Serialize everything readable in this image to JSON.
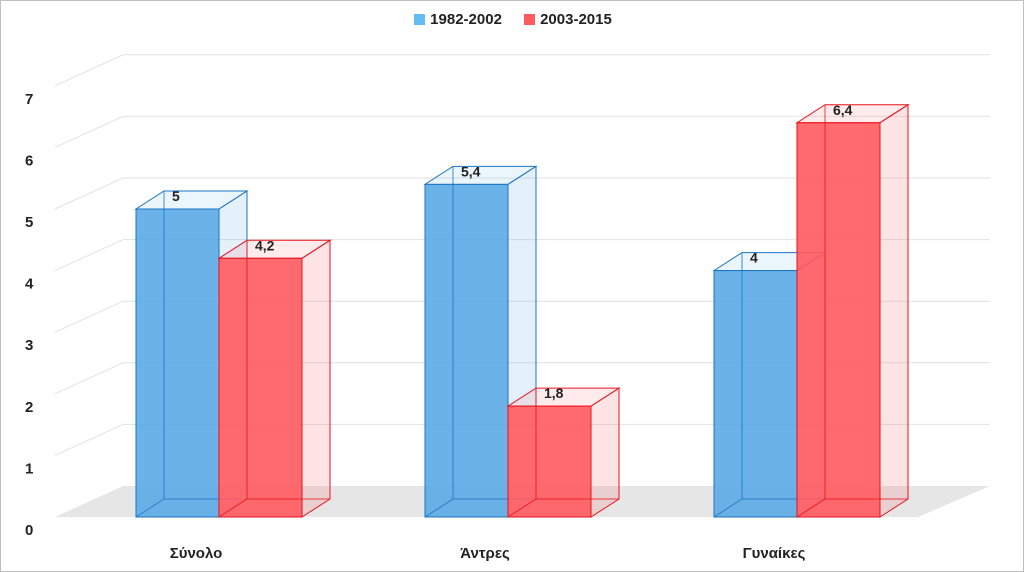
{
  "chart_data": {
    "type": "bar",
    "style": "3d-clustered-column",
    "categories": [
      "Σύνολο",
      "Άντρες",
      "Γυναίκες"
    ],
    "series": [
      {
        "name": "1982-2002",
        "values": [
          5,
          5.4,
          4
        ],
        "labels": [
          "5",
          "5,4",
          "4"
        ],
        "color": "#5aaae6",
        "edge": "#1c74c4"
      },
      {
        "name": "2003-2015",
        "values": [
          4.2,
          1.8,
          6.4
        ],
        "labels": [
          "4,2",
          "1,8",
          "6,4"
        ],
        "color": "#ff5a5f",
        "edge": "#e8121c"
      }
    ],
    "ylim": [
      0,
      7
    ],
    "yticks": [
      "0",
      "1",
      "2",
      "3",
      "4",
      "5",
      "6",
      "7"
    ],
    "grid": true,
    "legend_position": "top-center"
  }
}
